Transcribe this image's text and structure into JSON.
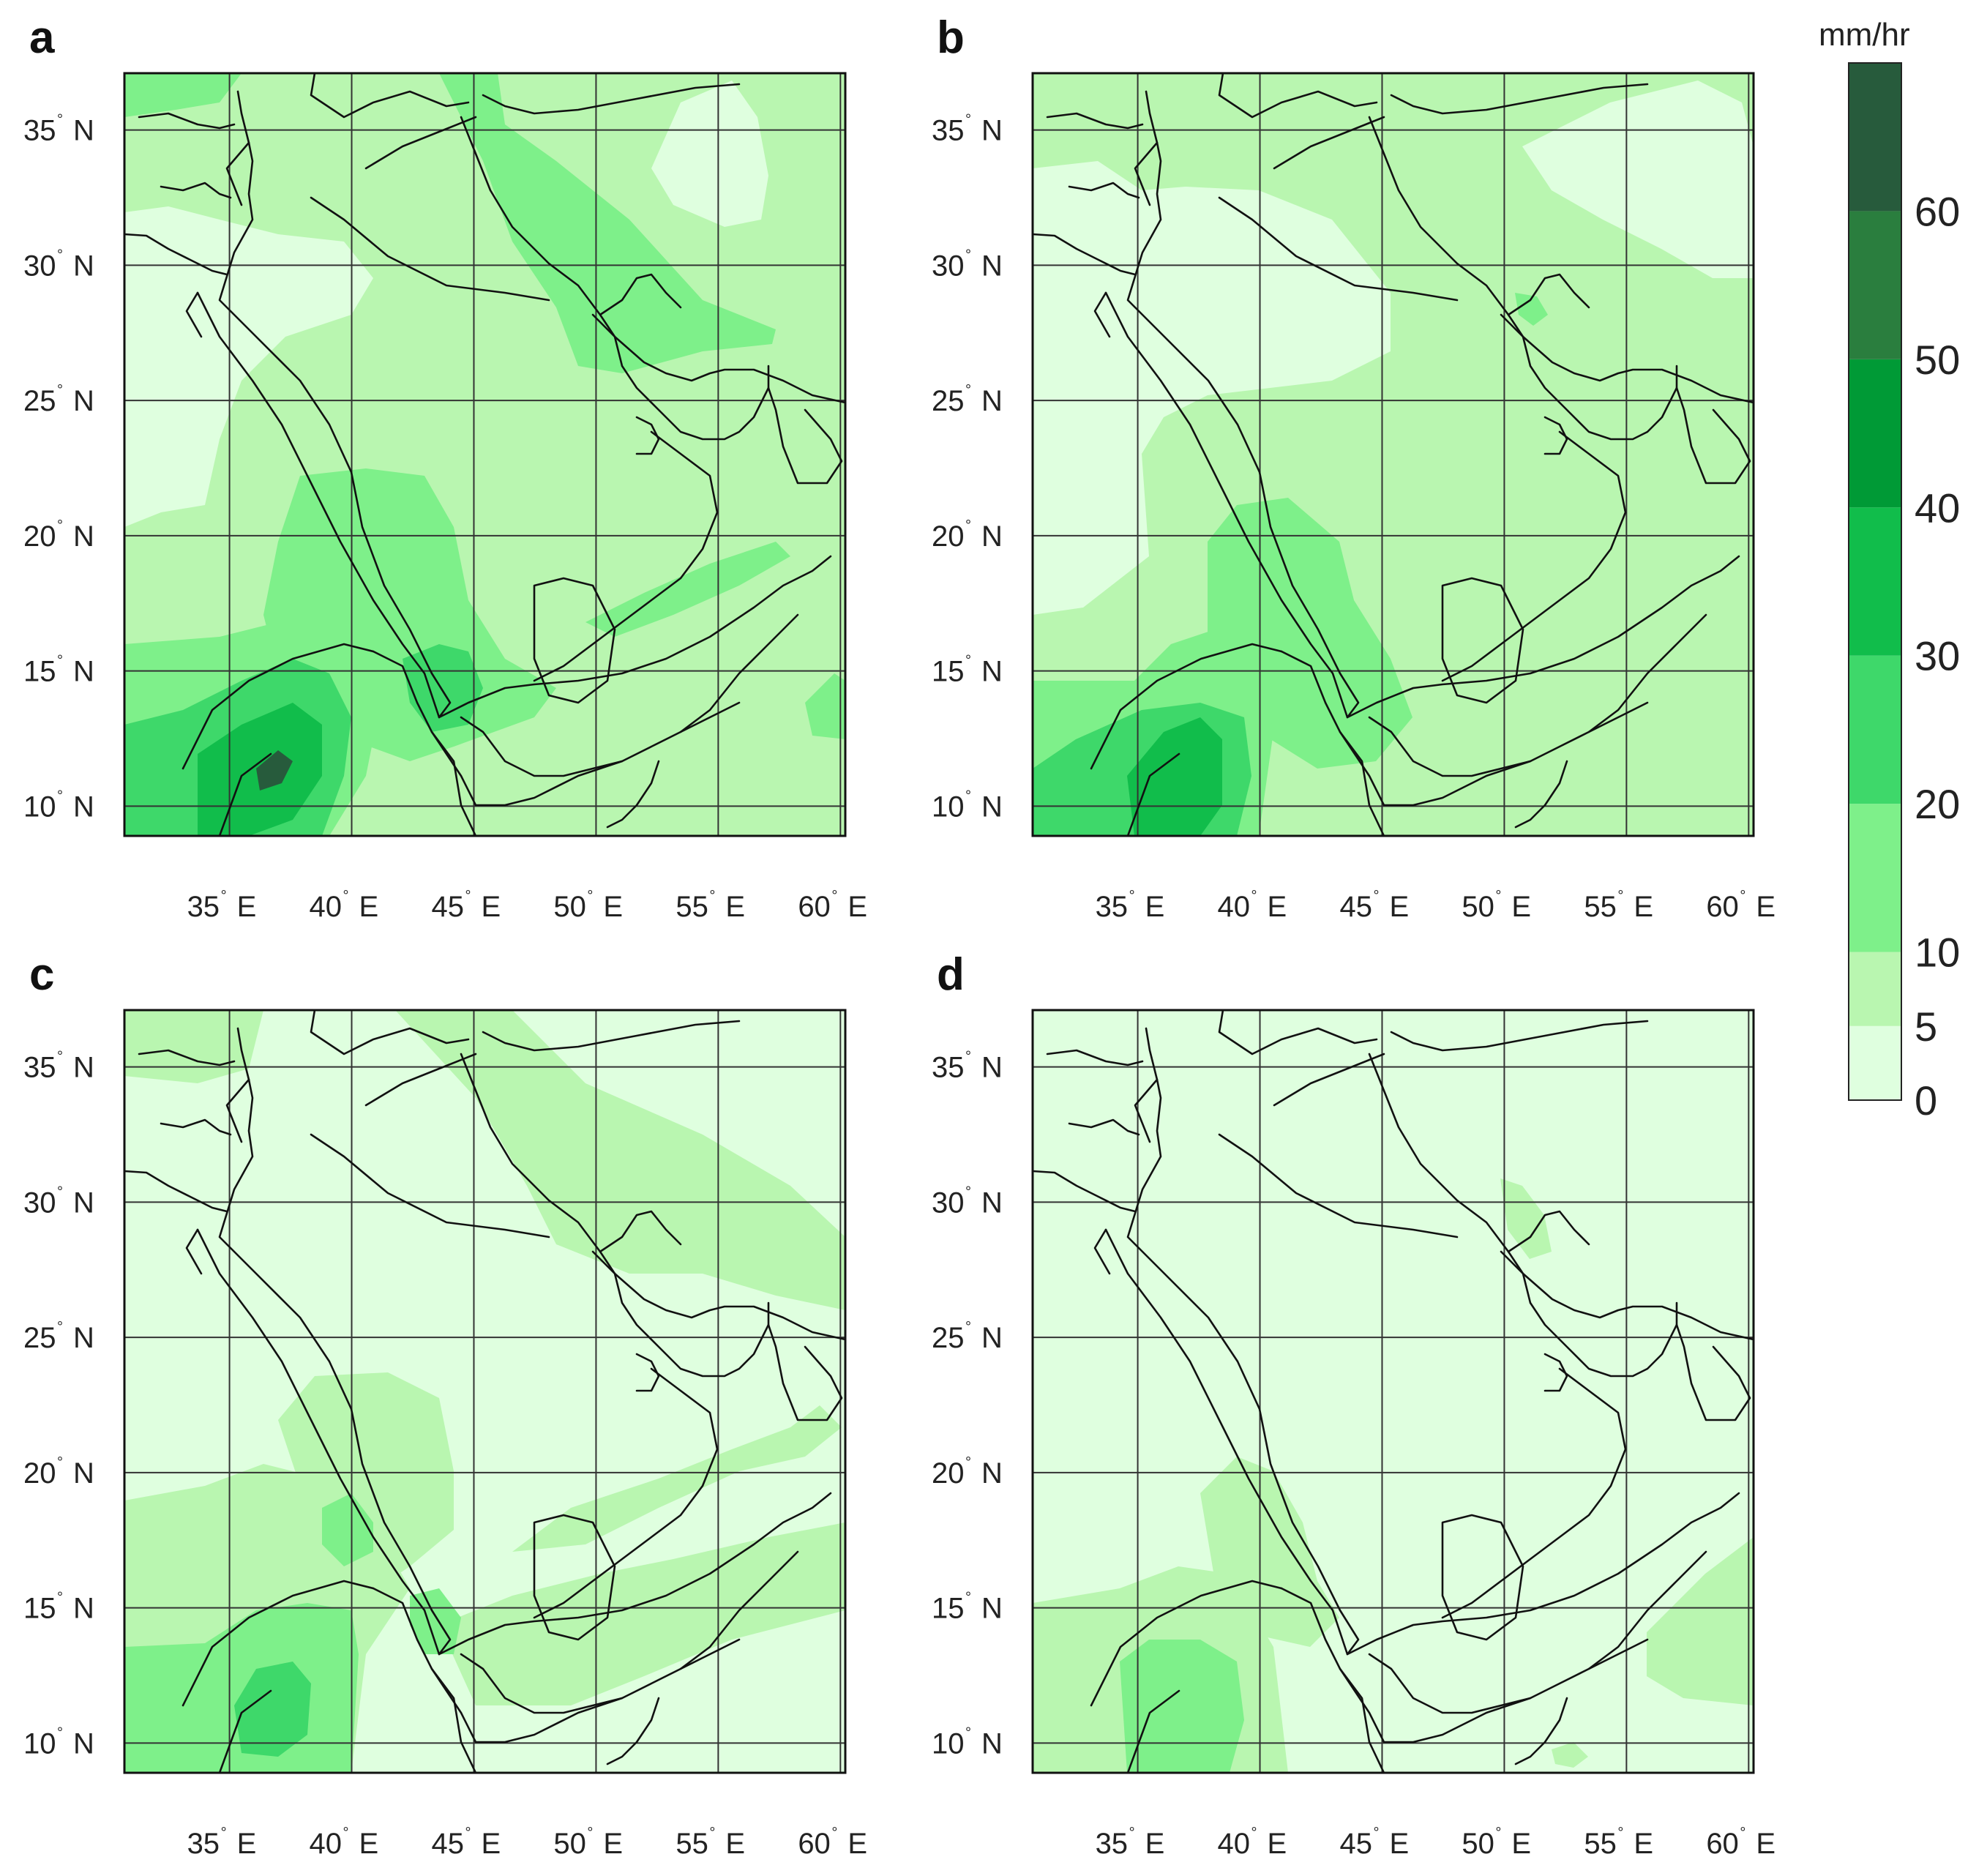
{
  "figure": {
    "panels": [
      {
        "letter": "a",
        "field": "a"
      },
      {
        "letter": "b",
        "field": "b"
      },
      {
        "letter": "c",
        "field": "c"
      },
      {
        "letter": "d",
        "field": "d"
      }
    ],
    "lat_ticks": [
      {
        "value": 35,
        "label": "35",
        "hemi": "N"
      },
      {
        "value": 30,
        "label": "30",
        "hemi": "N"
      },
      {
        "value": 25,
        "label": "25",
        "hemi": "N"
      },
      {
        "value": 20,
        "label": "20",
        "hemi": "N"
      },
      {
        "value": 15,
        "label": "15",
        "hemi": "N"
      },
      {
        "value": 10,
        "label": "10",
        "hemi": "N"
      }
    ],
    "lon_ticks": [
      {
        "value": 35,
        "label": "35",
        "hemi": "E"
      },
      {
        "value": 40,
        "label": "40",
        "hemi": "E"
      },
      {
        "value": 45,
        "label": "45",
        "hemi": "E"
      },
      {
        "value": 50,
        "label": "50",
        "hemi": "E"
      },
      {
        "value": 55,
        "label": "55",
        "hemi": "E"
      },
      {
        "value": 60,
        "label": "60",
        "hemi": "E"
      }
    ],
    "lon_range": [
      30.7,
      60.2
    ],
    "lat_range": [
      8.9,
      37.1
    ],
    "colorbar": {
      "unit": "mm/hr",
      "tick_labels": [
        "0",
        "5",
        "10",
        "20",
        "30",
        "40",
        "50",
        "60"
      ],
      "levels": [
        0,
        5,
        10,
        20,
        30,
        40,
        50,
        60,
        70
      ],
      "colors": [
        "#dfffdf",
        "#b9f6b0",
        "#7ef08a",
        "#3ed86a",
        "#11bd4b",
        "#009a36",
        "#2a7e3e",
        "#275b3c"
      ]
    }
  }
}
